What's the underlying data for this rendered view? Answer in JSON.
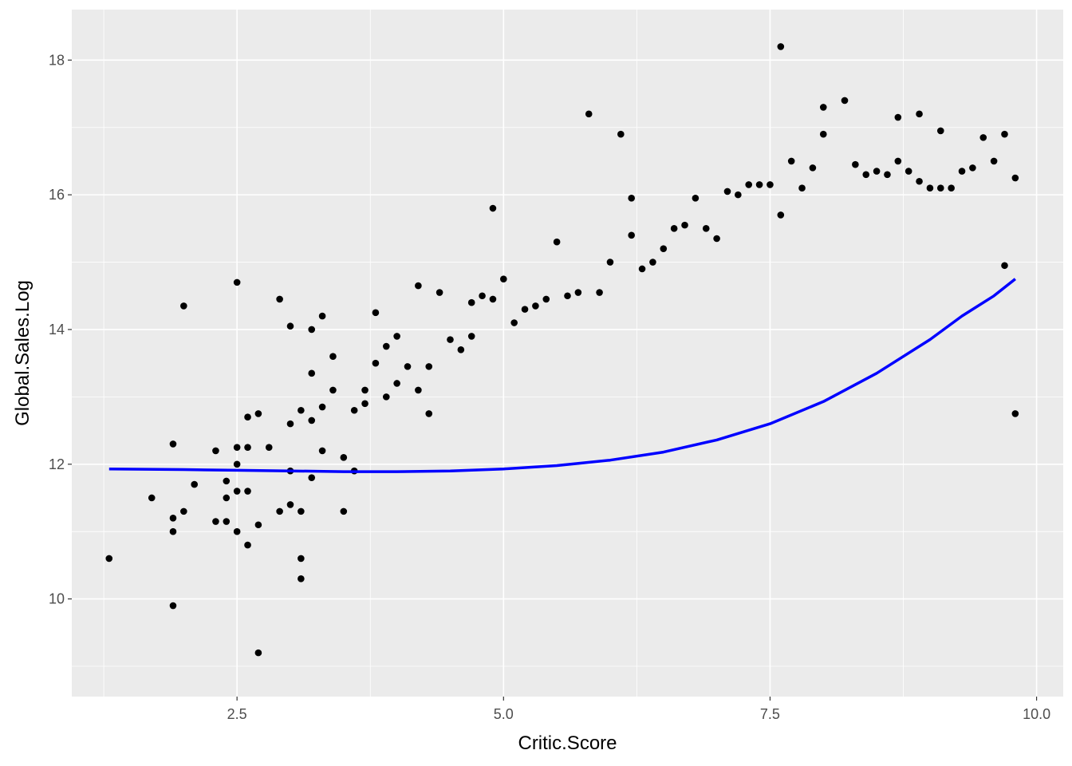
{
  "chart_data": {
    "type": "scatter",
    "title": "",
    "xlabel": "Critic.Score",
    "ylabel": "Global.Sales.Log",
    "xlim": [
      0.95,
      10.25
    ],
    "ylim": [
      8.55,
      18.75
    ],
    "x_ticks": [
      2.5,
      5.0,
      7.5,
      10.0
    ],
    "x_tick_labels": [
      "2.5",
      "5.0",
      "7.5",
      "10.0"
    ],
    "y_ticks": [
      10,
      12,
      14,
      16,
      18
    ],
    "y_tick_labels": [
      "10",
      "12",
      "14",
      "16",
      "18"
    ],
    "grid": true,
    "legend": "none",
    "colors": {
      "panel": "#EBEBEB",
      "grid": "#FFFFFF",
      "points": "#000000",
      "smooth": "#0000FF"
    },
    "points_x": [
      1.3,
      1.7,
      1.9,
      1.9,
      1.9,
      1.9,
      2.0,
      2.0,
      2.1,
      2.3,
      2.3,
      2.4,
      2.4,
      2.4,
      2.5,
      2.5,
      2.5,
      2.5,
      2.5,
      2.6,
      2.6,
      2.6,
      2.6,
      2.7,
      2.7,
      2.7,
      2.8,
      2.9,
      2.9,
      3.0,
      3.0,
      3.0,
      3.0,
      3.1,
      3.1,
      3.1,
      3.1,
      3.2,
      3.2,
      3.2,
      3.2,
      3.3,
      3.3,
      3.3,
      3.4,
      3.4,
      3.5,
      3.5,
      3.6,
      3.6,
      3.7,
      3.7,
      3.8,
      3.8,
      3.9,
      3.9,
      4.0,
      4.0,
      4.1,
      4.2,
      4.2,
      4.3,
      4.3,
      4.4,
      4.5,
      4.6,
      4.7,
      4.7,
      4.8,
      4.9,
      4.9,
      5.0,
      5.1,
      5.2,
      5.3,
      5.4,
      5.5,
      5.6,
      5.7,
      5.8,
      5.9,
      6.0,
      6.1,
      6.2,
      6.2,
      6.3,
      6.4,
      6.5,
      6.6,
      6.7,
      6.8,
      6.9,
      7.0,
      7.1,
      7.2,
      7.3,
      7.4,
      7.5,
      7.6,
      7.6,
      7.7,
      7.8,
      7.9,
      8.0,
      8.0,
      8.2,
      8.3,
      8.4,
      8.5,
      8.6,
      8.7,
      8.7,
      8.8,
      8.9,
      8.9,
      9.0,
      9.1,
      9.1,
      9.2,
      9.3,
      9.4,
      9.5,
      9.6,
      9.7,
      9.7,
      9.8,
      9.8
    ],
    "points_y": [
      10.6,
      11.5,
      12.3,
      11.0,
      11.2,
      9.9,
      14.35,
      11.3,
      11.7,
      12.2,
      11.15,
      11.15,
      11.5,
      11.75,
      14.7,
      12.0,
      11.0,
      11.6,
      12.25,
      12.7,
      12.25,
      11.6,
      10.8,
      12.75,
      11.1,
      9.2,
      12.25,
      14.45,
      11.3,
      14.05,
      12.6,
      11.9,
      11.4,
      12.8,
      11.3,
      10.6,
      10.3,
      14.0,
      13.35,
      12.65,
      11.8,
      14.2,
      12.85,
      12.2,
      13.6,
      13.1,
      12.1,
      11.3,
      12.8,
      11.9,
      13.1,
      12.9,
      14.25,
      13.5,
      13.75,
      13.0,
      13.9,
      13.2,
      13.45,
      14.65,
      13.1,
      13.45,
      12.75,
      14.55,
      13.85,
      13.7,
      14.4,
      13.9,
      14.5,
      15.8,
      14.45,
      14.75,
      14.1,
      14.3,
      14.35,
      14.45,
      15.3,
      14.5,
      14.55,
      17.2,
      14.55,
      15.0,
      16.9,
      15.95,
      15.4,
      14.9,
      15.0,
      15.2,
      15.5,
      15.55,
      15.95,
      15.5,
      15.35,
      16.05,
      16.0,
      16.15,
      16.15,
      16.15,
      18.2,
      15.7,
      16.5,
      16.1,
      16.4,
      17.3,
      16.9,
      17.4,
      16.45,
      16.3,
      16.35,
      16.3,
      17.15,
      16.5,
      16.35,
      17.2,
      16.2,
      16.1,
      16.95,
      16.1,
      16.1,
      16.35,
      16.4,
      16.85,
      16.5,
      16.9,
      14.95,
      16.25,
      12.75
    ],
    "smooth_x": [
      1.3,
      2.0,
      2.5,
      3.0,
      3.5,
      4.0,
      4.5,
      5.0,
      5.5,
      6.0,
      6.5,
      7.0,
      7.5,
      8.0,
      8.5,
      9.0,
      9.3,
      9.6,
      9.8
    ],
    "smooth_y": [
      11.93,
      11.92,
      11.91,
      11.9,
      11.89,
      11.89,
      11.9,
      11.93,
      11.98,
      12.06,
      12.18,
      12.36,
      12.6,
      12.93,
      13.35,
      13.85,
      14.2,
      14.5,
      14.75
    ]
  }
}
